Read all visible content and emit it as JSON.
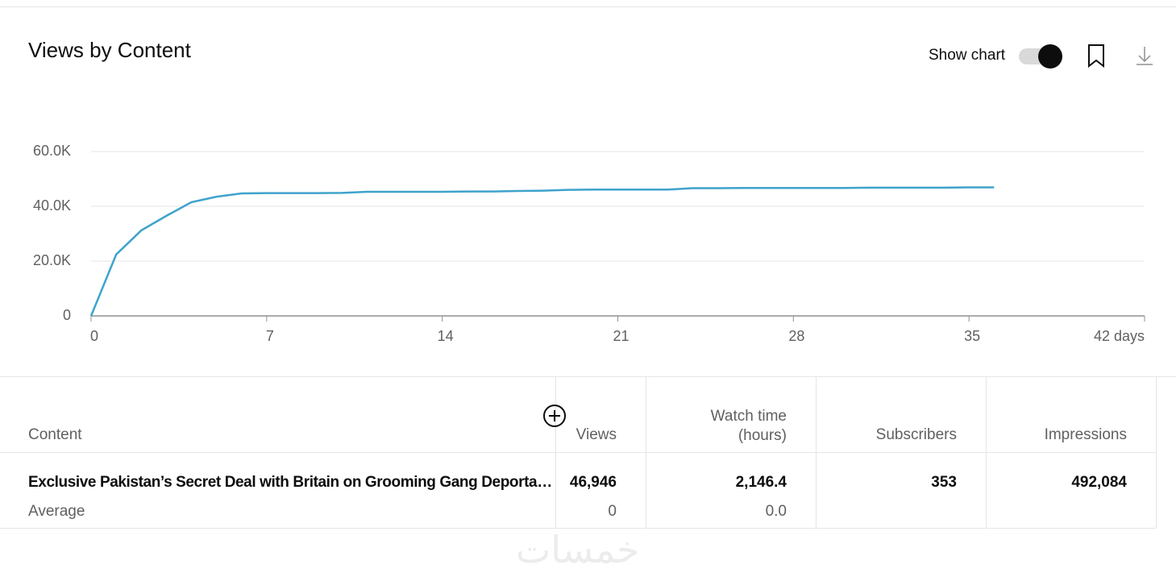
{
  "header": {
    "title": "Views by Content",
    "toggle_label": "Show chart"
  },
  "chart_data": {
    "type": "line",
    "color": "#3ea3cc",
    "x": [
      0,
      1,
      2,
      3,
      4,
      5,
      6,
      7,
      8,
      9,
      10,
      11,
      12,
      13,
      14,
      15,
      16,
      17,
      18,
      19,
      20,
      21,
      22,
      23,
      24,
      25,
      26,
      27,
      28,
      29,
      30,
      31,
      32,
      33,
      34,
      35,
      36
    ],
    "values": [
      0,
      22400,
      31200,
      36500,
      41500,
      43500,
      44700,
      44800,
      44800,
      44800,
      44900,
      45300,
      45300,
      45300,
      45300,
      45400,
      45400,
      45600,
      45700,
      46000,
      46100,
      46100,
      46100,
      46100,
      46600,
      46600,
      46700,
      46700,
      46700,
      46700,
      46700,
      46800,
      46800,
      46800,
      46800,
      46900,
      46900
    ],
    "xlim": [
      0,
      42
    ],
    "xticks": [
      0,
      7,
      14,
      21,
      28,
      35,
      {
        "value": 42,
        "label": "42 days"
      }
    ],
    "ylim": [
      0,
      60000
    ],
    "yticks": [
      0,
      {
        "value": 20000,
        "label": "20.0K"
      },
      {
        "value": 40000,
        "label": "40.0K"
      },
      {
        "value": 60000,
        "label": "60.0K"
      }
    ],
    "grid": true
  },
  "table": {
    "columns": [
      "Content",
      "Views",
      "Watch time (hours)",
      "Subscribers",
      "Impressions"
    ],
    "rows": [
      [
        "Exclusive Pakistan’s Secret Deal with Britain on Grooming Gang Deporta…",
        "46,946",
        "2,146.4",
        "353",
        "492,084"
      ],
      [
        "Average",
        "0",
        "0.0"
      ]
    ]
  },
  "watermark": "خمسات"
}
